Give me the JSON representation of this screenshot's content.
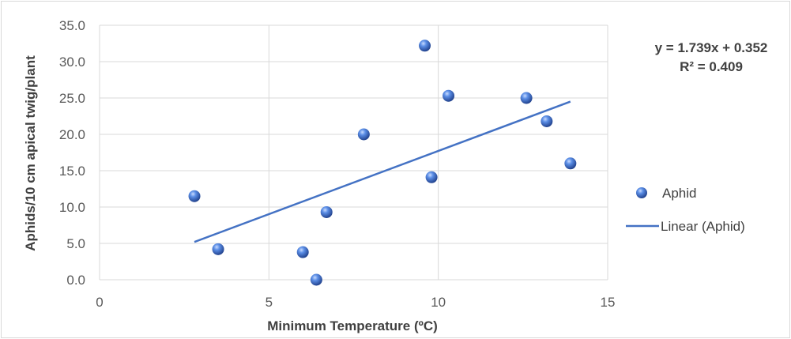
{
  "chart_data": {
    "type": "scatter",
    "xlabel": "Minimum Temperature (ºC)",
    "ylabel": "Aphids/10 cm apical twig/plant",
    "xlim": [
      0,
      15
    ],
    "ylim": [
      0,
      35
    ],
    "xticks": [
      "0",
      "5",
      "10",
      "15"
    ],
    "yticks": [
      "0.0",
      "5.0",
      "10.0",
      "15.0",
      "20.0",
      "25.0",
      "30.0",
      "35.0"
    ],
    "grid": true,
    "legend_position": "right",
    "series": [
      {
        "name": "Aphid",
        "color": "#4472c4",
        "points": [
          {
            "x": 2.8,
            "y": 11.5
          },
          {
            "x": 3.5,
            "y": 4.2
          },
          {
            "x": 6.0,
            "y": 3.8
          },
          {
            "x": 6.4,
            "y": 0.0
          },
          {
            "x": 6.7,
            "y": 9.3
          },
          {
            "x": 7.8,
            "y": 20.0
          },
          {
            "x": 9.6,
            "y": 32.2
          },
          {
            "x": 9.8,
            "y": 14.1
          },
          {
            "x": 10.3,
            "y": 25.3
          },
          {
            "x": 12.6,
            "y": 25.0
          },
          {
            "x": 13.2,
            "y": 21.8
          },
          {
            "x": 13.9,
            "y": 16.0
          }
        ]
      }
    ],
    "trendline": {
      "name": "Linear (Aphid)",
      "color": "#4472c4",
      "x_range": [
        2.8,
        13.9
      ],
      "y_range": [
        5.2,
        24.5
      ]
    },
    "annotations": {
      "equation": "y = 1.739x + 0.352",
      "r_squared": "R² = 0.409"
    }
  }
}
